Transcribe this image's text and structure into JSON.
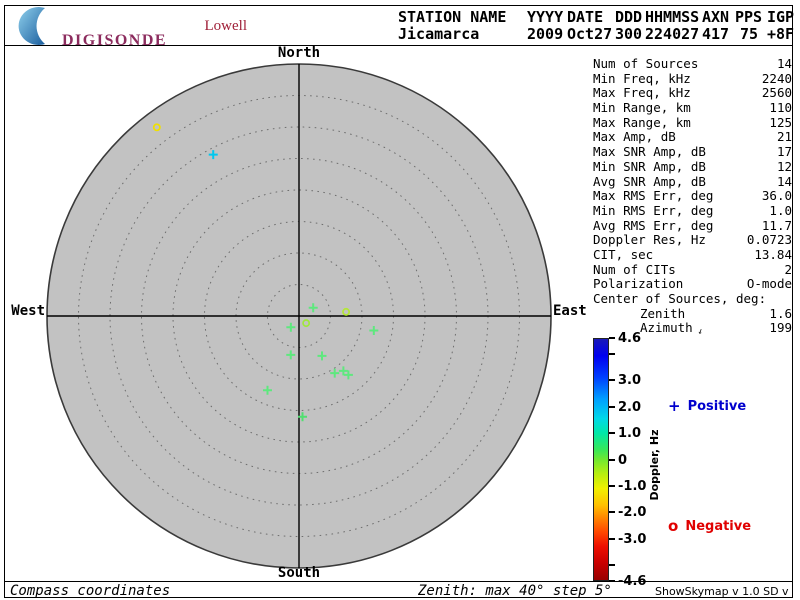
{
  "header": {
    "logo": {
      "line1": "Lowell",
      "line2": "DIGISONDE"
    },
    "station_columns": [
      {
        "label": "STATION NAME",
        "value": "Jicamarca"
      },
      {
        "label": "YYYY",
        "value": "2009"
      },
      {
        "label": "DATE",
        "value": "Oct27"
      },
      {
        "label": "DDD",
        "value": "300"
      },
      {
        "label": "HHMMSS",
        "value": "224027"
      },
      {
        "label": "AXN",
        "value": "417"
      },
      {
        "label": "PPS",
        "value": "75"
      },
      {
        "label": "IGP",
        "value": "+8F"
      }
    ]
  },
  "stats": {
    "azimuth_arrow_char": "↑",
    "rows": [
      {
        "label": "Num of Sources",
        "value": "14"
      },
      {
        "label": "Min Freq, kHz",
        "value": "2240"
      },
      {
        "label": "Max Freq, kHz",
        "value": "2560"
      },
      {
        "label": "Min Range, km",
        "value": "110"
      },
      {
        "label": "Max Range, km",
        "value": "125"
      },
      {
        "label": "Max Amp, dB",
        "value": "21"
      },
      {
        "label": "Max SNR Amp, dB",
        "value": "17"
      },
      {
        "label": "Min SNR Amp, dB",
        "value": "12"
      },
      {
        "label": "Avg SNR Amp, dB",
        "value": "14"
      },
      {
        "label": "Max RMS Err, deg",
        "value": "36.0"
      },
      {
        "label": "Min RMS Err, deg",
        "value": "1.0"
      },
      {
        "label": "Avg RMS Err, deg",
        "value": "11.7"
      },
      {
        "label": "Doppler Res, Hz",
        "value": "0.0723"
      },
      {
        "label": "CIT, sec",
        "value": "13.84"
      },
      {
        "label": "Num of CITs",
        "value": "2"
      },
      {
        "label": "Polarization",
        "value": "O-mode"
      },
      {
        "label": "Center of Sources, deg:",
        "value": ""
      },
      {
        "label": "Zenith",
        "value": "1.6",
        "indent": true
      },
      {
        "label": "Azimuth",
        "value": "199",
        "indent": true,
        "arrow": true
      }
    ]
  },
  "compass": {
    "north": "North",
    "south": "South",
    "east": "East",
    "west": "West"
  },
  "legend": {
    "positive_symbol": "+",
    "positive_label": "Positive",
    "positive_color": "#0000cd",
    "negative_symbol": "o",
    "negative_label": "Negative",
    "negative_color": "#e00000"
  },
  "colorbar": {
    "title": "Doppler, Hz",
    "max": 4.6,
    "min": -4.6,
    "ticks": [
      {
        "v": 4.6,
        "label": "4.6"
      },
      {
        "v": 4.0,
        "label": ""
      },
      {
        "v": 3.0,
        "label": "3.0"
      },
      {
        "v": 2.0,
        "label": "2.0"
      },
      {
        "v": 1.0,
        "label": "1.0"
      },
      {
        "v": 0,
        "label": "0"
      },
      {
        "v": -1.0,
        "label": "-1.0"
      },
      {
        "v": -2.0,
        "label": "-2.0"
      },
      {
        "v": -3.0,
        "label": "-3.0"
      },
      {
        "v": -4.0,
        "label": ""
      },
      {
        "v": -4.6,
        "label": "-4.6"
      }
    ]
  },
  "footer": {
    "left": "Compass coordinates",
    "center": "Zenith: max 40°  step 5°",
    "right": "ShowSkymap v 1.0  SD v 4.2"
  },
  "chart_data": {
    "type": "scatter",
    "projection": "polar skymap, compass coordinates (North up, East right)",
    "zenith_max_deg": 40,
    "zenith_step_deg": 5,
    "colorbar_label": "Doppler, Hz",
    "colorbar_range": [
      -4.6,
      4.6
    ],
    "plot_background": "#c2c2c2",
    "num_sources": 14,
    "points": [
      {
        "azimuth_deg": 323,
        "zenith_deg": 37.5,
        "doppler_hz": -1.0,
        "polarity": "negative",
        "symbol": "o",
        "color": "#f0e000"
      },
      {
        "azimuth_deg": 332,
        "zenith_deg": 29.0,
        "doppler_hz": 1.6,
        "polarity": "positive",
        "symbol": "+",
        "color": "#00c8f0"
      },
      {
        "azimuth_deg": 60,
        "zenith_deg": 2.6,
        "doppler_hz": 0.3,
        "polarity": "positive",
        "symbol": "+",
        "color": "#5ee87e"
      },
      {
        "azimuth_deg": 85,
        "zenith_deg": 7.5,
        "doppler_hz": -0.4,
        "polarity": "negative",
        "symbol": "o",
        "color": "#b4e834"
      },
      {
        "azimuth_deg": 135,
        "zenith_deg": 1.6,
        "doppler_hz": -0.4,
        "polarity": "negative",
        "symbol": "o",
        "color": "#9fe83a"
      },
      {
        "azimuth_deg": 216,
        "zenith_deg": 2.2,
        "doppler_hz": 0.3,
        "polarity": "positive",
        "symbol": "+",
        "color": "#5ee87e"
      },
      {
        "azimuth_deg": 101,
        "zenith_deg": 12.1,
        "doppler_hz": 0.3,
        "polarity": "positive",
        "symbol": "+",
        "color": "#5ee87e"
      },
      {
        "azimuth_deg": 192,
        "zenith_deg": 6.3,
        "doppler_hz": 0.3,
        "polarity": "positive",
        "symbol": "+",
        "color": "#5ee87e"
      },
      {
        "azimuth_deg": 150,
        "zenith_deg": 7.3,
        "doppler_hz": 0.3,
        "polarity": "positive",
        "symbol": "+",
        "color": "#5ee87e"
      },
      {
        "azimuth_deg": 148,
        "zenith_deg": 10.7,
        "doppler_hz": 0.3,
        "polarity": "positive",
        "symbol": "+",
        "color": "#5ee87e"
      },
      {
        "azimuth_deg": 141,
        "zenith_deg": 11.2,
        "doppler_hz": 0.3,
        "polarity": "positive",
        "symbol": "+",
        "color": "#5ee87e"
      },
      {
        "azimuth_deg": 140,
        "zenith_deg": 12.2,
        "doppler_hz": 0.3,
        "polarity": "positive",
        "symbol": "+",
        "color": "#5ee87e"
      },
      {
        "azimuth_deg": 203,
        "zenith_deg": 12.8,
        "doppler_hz": 0.3,
        "polarity": "positive",
        "symbol": "+",
        "color": "#5ee87e"
      },
      {
        "azimuth_deg": 178,
        "zenith_deg": 16.0,
        "doppler_hz": 0.2,
        "polarity": "positive",
        "symbol": "+",
        "color": "#50e070"
      }
    ]
  }
}
